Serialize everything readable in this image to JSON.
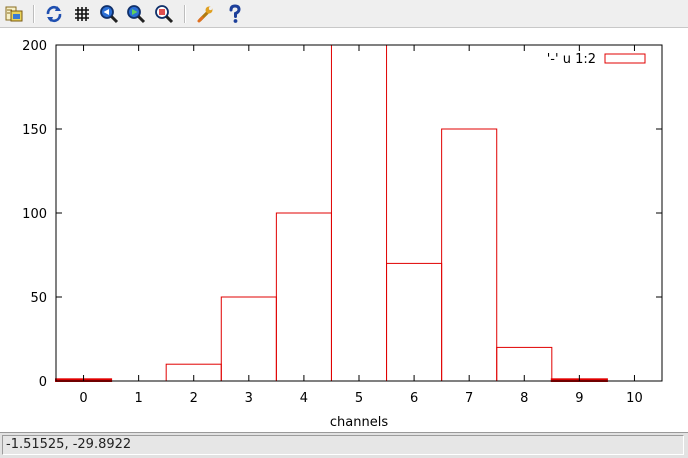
{
  "toolbar": {
    "items": [
      {
        "icon": "export-icon"
      },
      {
        "icon": "replot-icon"
      },
      {
        "icon": "grid-icon"
      },
      {
        "icon": "zoom-previous-icon"
      },
      {
        "icon": "zoom-next-icon"
      },
      {
        "icon": "autoscale-icon"
      },
      {
        "icon": "settings-wrench-icon"
      },
      {
        "icon": "help-icon"
      }
    ]
  },
  "status": {
    "coordinates": "-1.51525, -29.8922"
  },
  "chart_data": {
    "type": "bar",
    "style": "histogram-steps",
    "xlabel": "channels",
    "ylabel": "",
    "title": "",
    "xlim": [
      -0.5,
      10.5
    ],
    "ylim": [
      0,
      200
    ],
    "xticks": [
      0,
      1,
      2,
      3,
      4,
      5,
      6,
      7,
      8,
      9,
      10
    ],
    "yticks": [
      0,
      50,
      100,
      150,
      200
    ],
    "series": [
      {
        "name": "'-' u 1:2",
        "color": "#e00000",
        "x": [
          0,
          1,
          2,
          3,
          4,
          5,
          6,
          7,
          8,
          9
        ],
        "values": [
          1,
          0,
          10,
          50,
          100,
          200,
          70,
          150,
          20,
          1
        ]
      }
    ],
    "legend": {
      "position": "top-right"
    },
    "grid": false
  }
}
